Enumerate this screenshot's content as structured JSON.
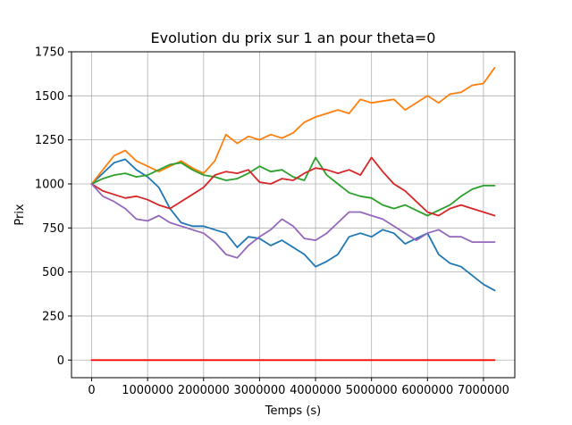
{
  "chart_data": {
    "type": "line",
    "title": "Evolution du prix sur 1 an pour theta=0",
    "xlabel": "Temps (s)",
    "ylabel": "Prix",
    "xlim": [
      -360000,
      7560000
    ],
    "ylim": [
      -100,
      1750
    ],
    "grid": true,
    "x_ticks": [
      0,
      1000000,
      2000000,
      3000000,
      4000000,
      5000000,
      6000000,
      7000000
    ],
    "x_tick_labels": [
      "0",
      "1000000",
      "2000000",
      "3000000",
      "4000000",
      "5000000",
      "6000000",
      "7000000"
    ],
    "y_ticks": [
      0,
      250,
      500,
      750,
      1000,
      1250,
      1500,
      1750
    ],
    "y_tick_labels": [
      "0",
      "250",
      "500",
      "750",
      "1000",
      "1250",
      "1500",
      "1750"
    ],
    "series": [
      {
        "color": "#1f77b4",
        "x": [
          0,
          200000,
          400000,
          600000,
          800000,
          1000000,
          1200000,
          1400000,
          1600000,
          1800000,
          2000000,
          2200000,
          2400000,
          2600000,
          2800000,
          3000000,
          3200000,
          3400000,
          3600000,
          3800000,
          4000000,
          4200000,
          4400000,
          4600000,
          4800000,
          5000000,
          5200000,
          5400000,
          5600000,
          5800000,
          6000000,
          6200000,
          6400000,
          6600000,
          6800000,
          7000000,
          7200000
        ],
        "values": [
          1000,
          1060,
          1120,
          1140,
          1080,
          1040,
          980,
          860,
          780,
          760,
          760,
          740,
          720,
          640,
          700,
          690,
          650,
          680,
          640,
          600,
          530,
          560,
          600,
          700,
          720,
          700,
          740,
          720,
          660,
          690,
          720,
          600,
          550,
          530,
          480,
          430,
          395
        ]
      },
      {
        "color": "#ff7f0e",
        "x": [
          0,
          200000,
          400000,
          600000,
          800000,
          1000000,
          1200000,
          1400000,
          1600000,
          1800000,
          2000000,
          2200000,
          2400000,
          2600000,
          2800000,
          3000000,
          3200000,
          3400000,
          3600000,
          3800000,
          4000000,
          4200000,
          4400000,
          4600000,
          4800000,
          5000000,
          5200000,
          5400000,
          5600000,
          5800000,
          6000000,
          6200000,
          6400000,
          6600000,
          6800000,
          7000000,
          7200000
        ],
        "values": [
          1000,
          1080,
          1160,
          1190,
          1130,
          1100,
          1070,
          1100,
          1130,
          1090,
          1060,
          1130,
          1280,
          1230,
          1270,
          1250,
          1280,
          1260,
          1290,
          1350,
          1380,
          1400,
          1420,
          1400,
          1480,
          1460,
          1470,
          1480,
          1420,
          1460,
          1500,
          1460,
          1510,
          1520,
          1560,
          1570,
          1660
        ]
      },
      {
        "color": "#2ca02c",
        "x": [
          0,
          200000,
          400000,
          600000,
          800000,
          1000000,
          1200000,
          1400000,
          1600000,
          1800000,
          2000000,
          2200000,
          2400000,
          2600000,
          2800000,
          3000000,
          3200000,
          3400000,
          3600000,
          3800000,
          4000000,
          4200000,
          4400000,
          4600000,
          4800000,
          5000000,
          5200000,
          5400000,
          5600000,
          5800000,
          6000000,
          6200000,
          6400000,
          6600000,
          6800000,
          7000000,
          7200000
        ],
        "values": [
          1000,
          1030,
          1050,
          1060,
          1040,
          1050,
          1080,
          1110,
          1120,
          1080,
          1050,
          1040,
          1020,
          1030,
          1060,
          1100,
          1070,
          1080,
          1040,
          1020,
          1150,
          1050,
          1000,
          950,
          930,
          920,
          880,
          860,
          880,
          850,
          820,
          850,
          880,
          930,
          970,
          990,
          990
        ]
      },
      {
        "color": "#d62728",
        "x": [
          0,
          200000,
          400000,
          600000,
          800000,
          1000000,
          1200000,
          1400000,
          1600000,
          1800000,
          2000000,
          2200000,
          2400000,
          2600000,
          2800000,
          3000000,
          3200000,
          3400000,
          3600000,
          3800000,
          4000000,
          4200000,
          4400000,
          4600000,
          4800000,
          5000000,
          5200000,
          5400000,
          5600000,
          5800000,
          6000000,
          6200000,
          6400000,
          6600000,
          6800000,
          7000000,
          7200000
        ],
        "values": [
          1000,
          960,
          940,
          920,
          930,
          910,
          880,
          860,
          900,
          940,
          980,
          1050,
          1070,
          1060,
          1080,
          1010,
          1000,
          1030,
          1020,
          1060,
          1090,
          1080,
          1060,
          1080,
          1050,
          1150,
          1070,
          1000,
          960,
          900,
          840,
          820,
          860,
          880,
          860,
          840,
          820
        ]
      },
      {
        "color": "#9467bd",
        "x": [
          0,
          200000,
          400000,
          600000,
          800000,
          1000000,
          1200000,
          1400000,
          1600000,
          1800000,
          2000000,
          2200000,
          2400000,
          2600000,
          2800000,
          3000000,
          3200000,
          3400000,
          3600000,
          3800000,
          4000000,
          4200000,
          4400000,
          4600000,
          4800000,
          5000000,
          5200000,
          5400000,
          5600000,
          5800000,
          6000000,
          6200000,
          6400000,
          6600000,
          6800000,
          7000000,
          7200000
        ],
        "values": [
          1000,
          930,
          900,
          860,
          800,
          790,
          820,
          780,
          760,
          740,
          720,
          670,
          600,
          580,
          650,
          700,
          740,
          800,
          760,
          690,
          680,
          720,
          780,
          840,
          840,
          820,
          800,
          760,
          720,
          680,
          720,
          740,
          700,
          700,
          670,
          670,
          670
        ]
      },
      {
        "color": "#ff0000",
        "x": [
          0,
          7200000
        ],
        "values": [
          0,
          0
        ]
      }
    ]
  }
}
